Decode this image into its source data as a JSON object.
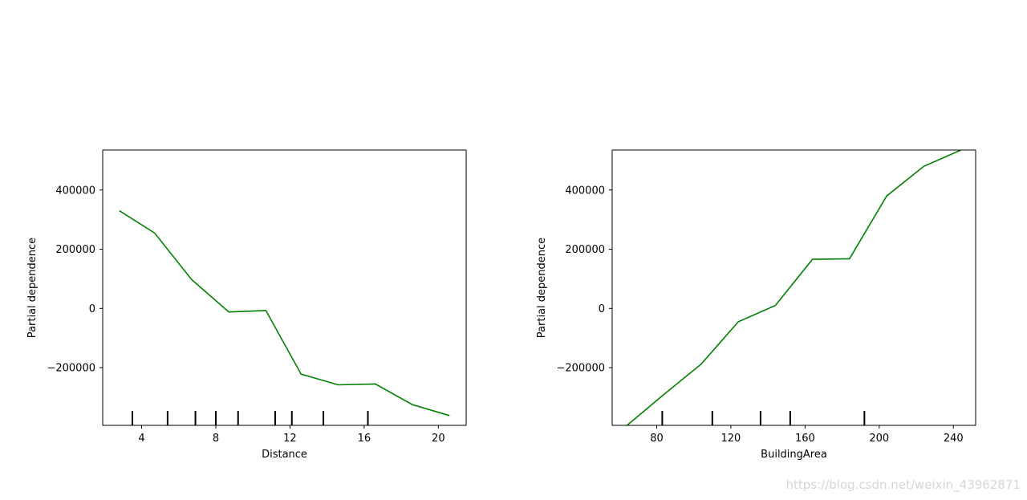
{
  "chart_data": [
    {
      "type": "line",
      "xlabel": "Distance",
      "ylabel": "Partial dependence",
      "xlim": [
        1.9,
        21.5
      ],
      "ylim": [
        -395000,
        535000
      ],
      "x_ticks": [
        4,
        8,
        12,
        16,
        20
      ],
      "y_ticks": [
        -200000,
        0,
        200000,
        400000
      ],
      "y_tick_labels": [
        "−200000",
        "0",
        "200000",
        "400000"
      ],
      "line_color": "#008000",
      "series": [
        {
          "x": [
            2.8,
            4.7,
            6.7,
            8.7,
            10.7,
            12.6,
            14.6,
            16.6,
            18.6,
            20.6
          ],
          "y": [
            330000,
            255000,
            97000,
            -12000,
            -7000,
            -222000,
            -258000,
            -255000,
            -325000,
            -362000
          ]
        }
      ],
      "rug": [
        3.5,
        5.4,
        6.9,
        8.0,
        9.2,
        11.2,
        12.1,
        13.8,
        16.2
      ]
    },
    {
      "type": "line",
      "xlabel": "BuildingArea",
      "ylabel": "Partial dependence",
      "xlim": [
        56,
        252
      ],
      "ylim": [
        -395000,
        535000
      ],
      "x_ticks": [
        80,
        120,
        160,
        200,
        240
      ],
      "y_ticks": [
        -200000,
        0,
        200000,
        400000
      ],
      "y_tick_labels": [
        "−200000",
        "0",
        "200000",
        "400000"
      ],
      "line_color": "#008000",
      "series": [
        {
          "x": [
            64,
            84,
            104,
            124,
            144,
            164,
            184,
            204,
            224,
            244
          ],
          "y": [
            -395000,
            -290000,
            -188000,
            -45000,
            10000,
            166000,
            168000,
            380000,
            480000,
            535000
          ]
        }
      ],
      "rug": [
        83,
        110,
        136,
        152,
        192
      ]
    }
  ],
  "watermark": "https://blog.csdn.net/weixin_43962871"
}
